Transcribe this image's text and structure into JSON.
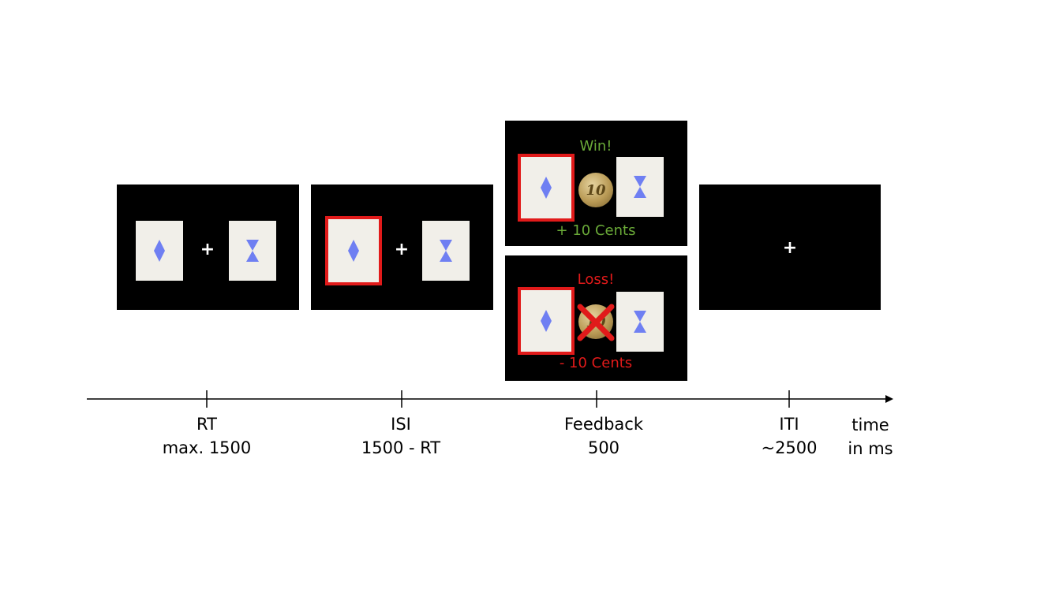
{
  "screens": {
    "rt": {
      "fixation": "+"
    },
    "isi": {
      "fixation": "+"
    },
    "win": {
      "title": "Win!",
      "amount": "+ 10 Cents",
      "coin_text": "10",
      "title_color": "#6aaa38"
    },
    "loss": {
      "title": "Loss!",
      "amount": "- 10 Cents",
      "coin_text": "10",
      "title_color": "#e11a1a"
    },
    "iti": {
      "fixation": "+"
    }
  },
  "timeline": {
    "phases": [
      {
        "name": "RT",
        "duration": "max. 1500"
      },
      {
        "name": "ISI",
        "duration": "1500 - RT"
      },
      {
        "name": "Feedback",
        "duration": "500"
      },
      {
        "name": "ITI",
        "duration": "~2500"
      }
    ],
    "axis_label_line1": "time",
    "axis_label_line2": "in ms"
  },
  "colors": {
    "symbol": "#6f7ff2",
    "card": "#f1efe9",
    "selection": "#e11a1a",
    "win": "#6aaa38",
    "loss": "#e11a1a"
  },
  "icons": [
    "diamond-icon",
    "hourglass-icon",
    "coin-icon",
    "cross-icon"
  ]
}
